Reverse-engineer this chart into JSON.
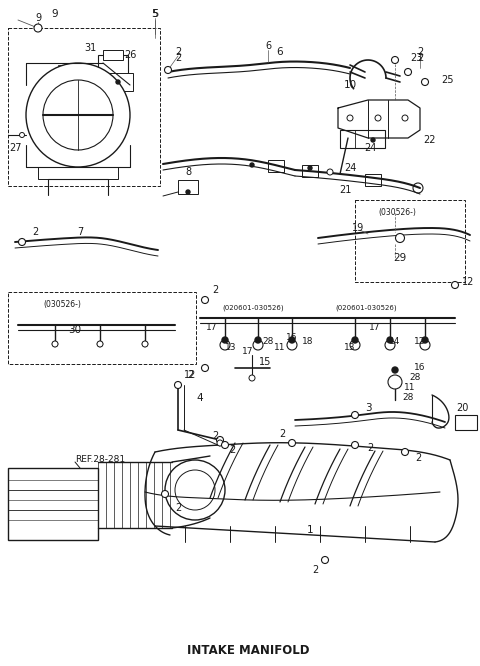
{
  "background_color": "#ffffff",
  "line_color": "#1a1a1a",
  "bottom_label": "INTAKE MANIFOLD",
  "fig_width": 4.8,
  "fig_height": 6.66,
  "dpi": 100
}
